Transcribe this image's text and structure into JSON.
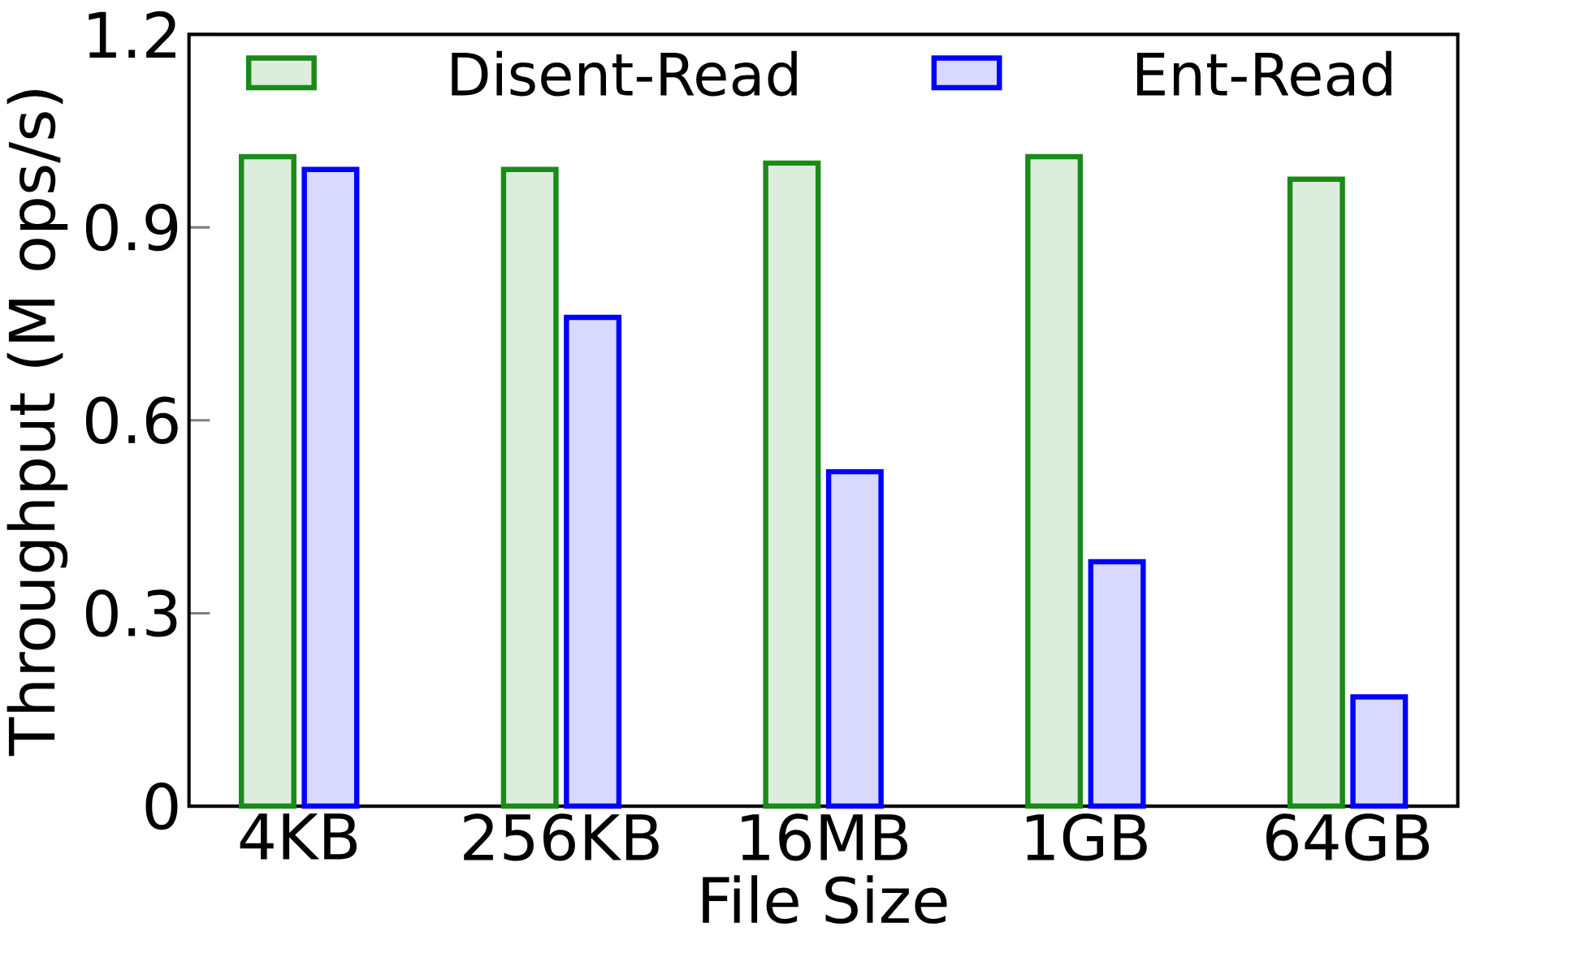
{
  "chart_data": {
    "type": "bar",
    "xlabel": "File Size",
    "ylabel": "Throughput (M ops/s)",
    "categories": [
      "4KB",
      "256KB",
      "16MB",
      "1GB",
      "64GB"
    ],
    "series": [
      {
        "name": "Disent-Read",
        "color": "#1a8a1a",
        "values": [
          1.01,
          0.99,
          1.0,
          1.01,
          0.975
        ]
      },
      {
        "name": "Ent-Read",
        "color": "#0000ff",
        "values": [
          0.99,
          0.76,
          0.52,
          0.38,
          0.17
        ]
      }
    ],
    "ylim": [
      0,
      1.2
    ],
    "yticks": [
      0,
      0.3,
      0.6,
      0.9,
      1.2
    ],
    "grid": false,
    "legend": "top"
  }
}
